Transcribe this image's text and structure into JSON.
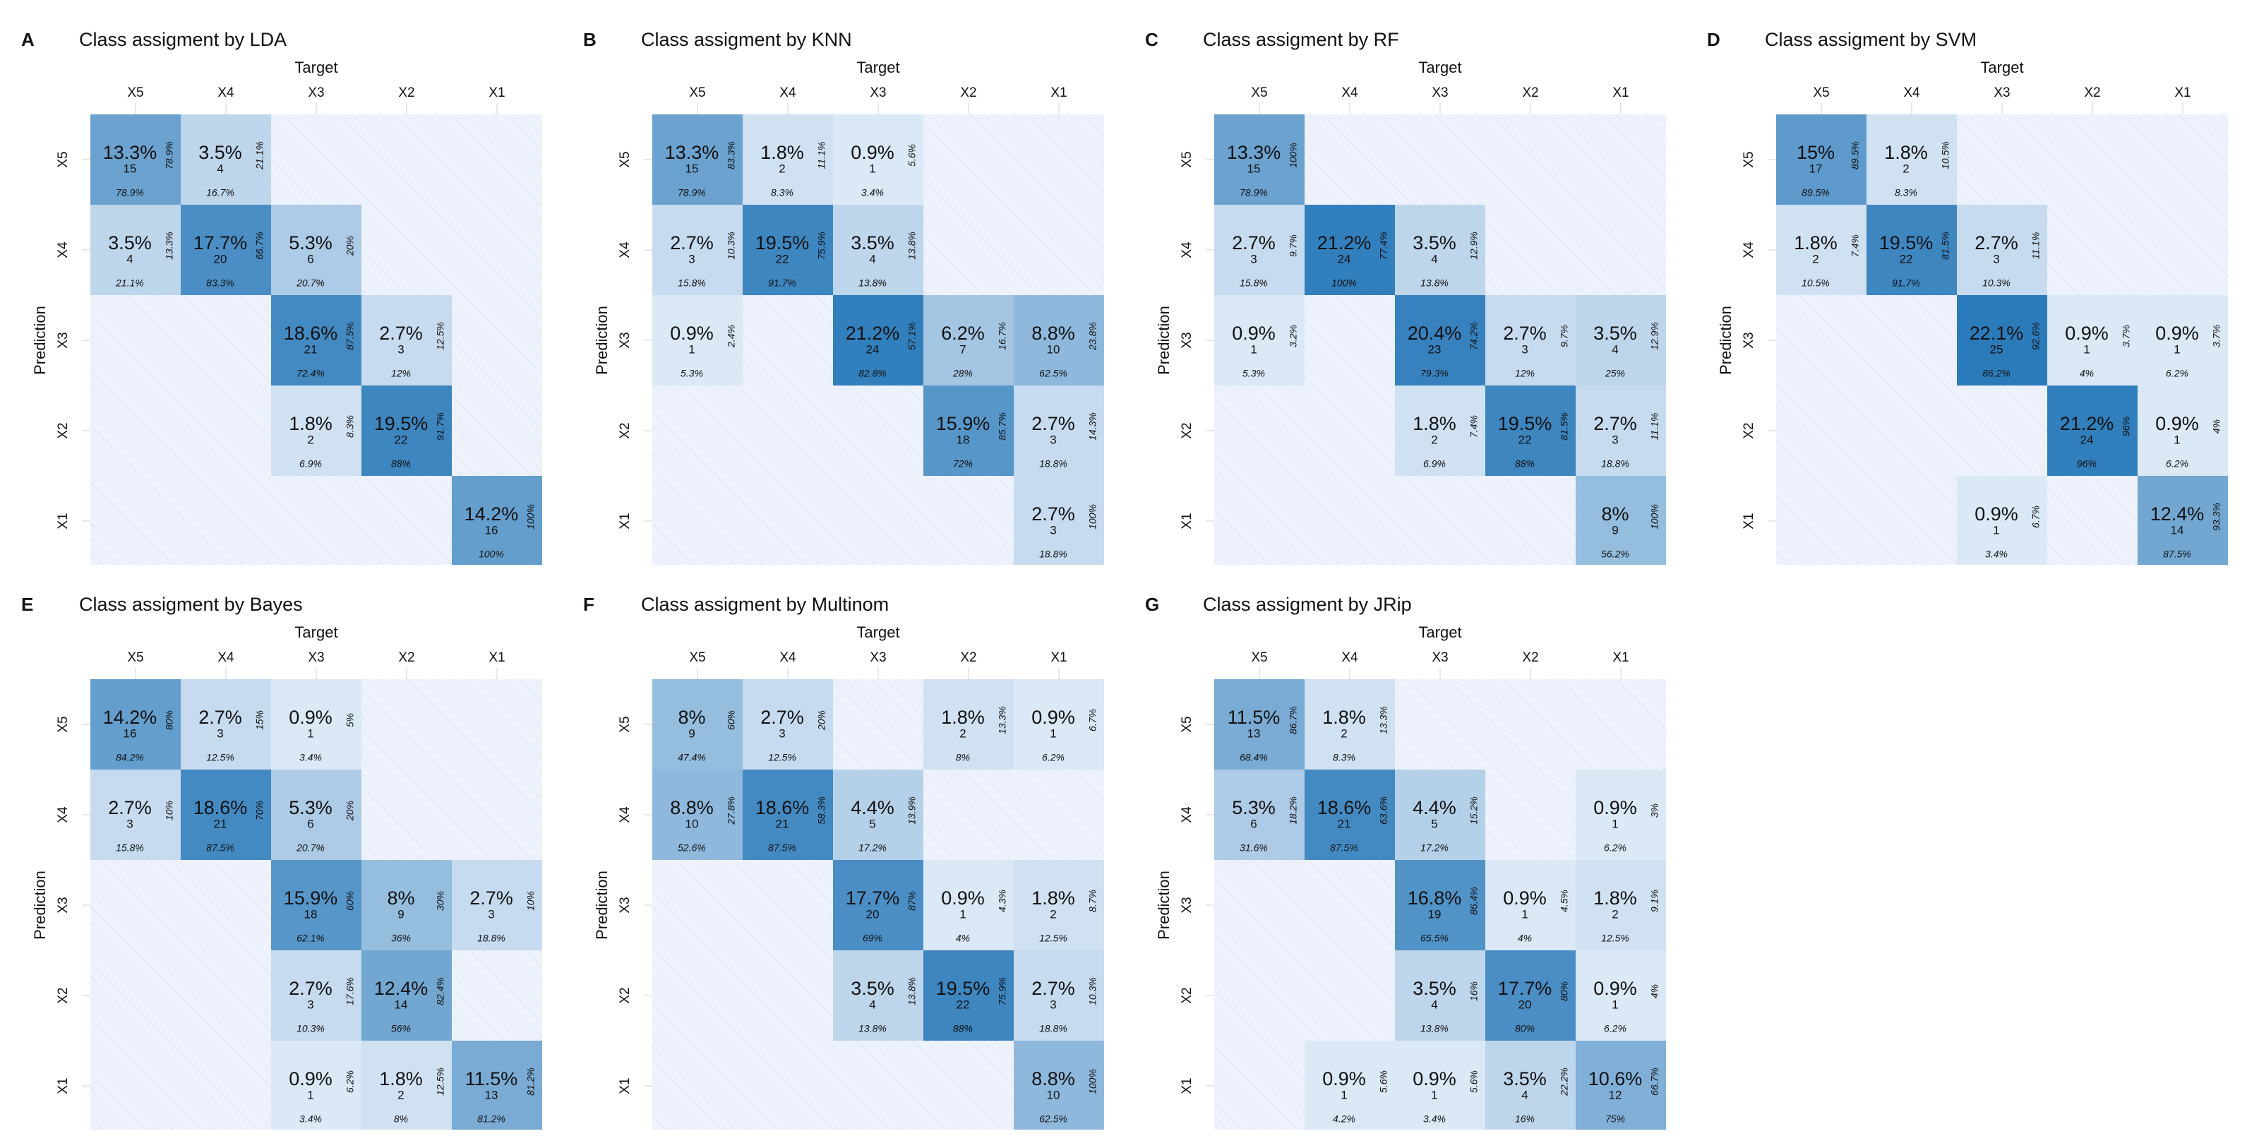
{
  "figure": {
    "shared_labels": {
      "target": "Target",
      "prediction": "Prediction"
    },
    "categories": [
      "X5",
      "X4",
      "X3",
      "X2",
      "X1"
    ]
  },
  "chart_data": [
    {
      "type": "heatmap",
      "letter": "A",
      "title": "Class assigment by LDA",
      "xlabel": "Target",
      "ylabel": "Prediction",
      "x_categories": [
        "X5",
        "X4",
        "X3",
        "X2",
        "X1"
      ],
      "y_categories": [
        "X5",
        "X4",
        "X3",
        "X2",
        "X1"
      ],
      "cells": [
        {
          "row": "X5",
          "col": "X5",
          "pct": "13.3%",
          "count": "15",
          "col_pct": "78.9%",
          "row_pct": "78.9%"
        },
        {
          "row": "X5",
          "col": "X4",
          "pct": "3.5%",
          "count": "4",
          "col_pct": "16.7%",
          "row_pct": "21.1%"
        },
        {
          "row": "X4",
          "col": "X5",
          "pct": "3.5%",
          "count": "4",
          "col_pct": "21.1%",
          "row_pct": "13.3%"
        },
        {
          "row": "X4",
          "col": "X4",
          "pct": "17.7%",
          "count": "20",
          "col_pct": "83.3%",
          "row_pct": "66.7%"
        },
        {
          "row": "X4",
          "col": "X3",
          "pct": "5.3%",
          "count": "6",
          "col_pct": "20.7%",
          "row_pct": "20%"
        },
        {
          "row": "X3",
          "col": "X3",
          "pct": "18.6%",
          "count": "21",
          "col_pct": "72.4%",
          "row_pct": "87.5%"
        },
        {
          "row": "X3",
          "col": "X2",
          "pct": "2.7%",
          "count": "3",
          "col_pct": "12%",
          "row_pct": "12.5%"
        },
        {
          "row": "X2",
          "col": "X3",
          "pct": "1.8%",
          "count": "2",
          "col_pct": "6.9%",
          "row_pct": "8.3%"
        },
        {
          "row": "X2",
          "col": "X2",
          "pct": "19.5%",
          "count": "22",
          "col_pct": "88%",
          "row_pct": "91.7%"
        },
        {
          "row": "X1",
          "col": "X1",
          "pct": "14.2%",
          "count": "16",
          "col_pct": "100%",
          "row_pct": "100%"
        }
      ]
    },
    {
      "type": "heatmap",
      "letter": "B",
      "title": "Class assigment by KNN",
      "xlabel": "Target",
      "ylabel": "Prediction",
      "x_categories": [
        "X5",
        "X4",
        "X3",
        "X2",
        "X1"
      ],
      "y_categories": [
        "X5",
        "X4",
        "X3",
        "X2",
        "X1"
      ],
      "cells": [
        {
          "row": "X5",
          "col": "X5",
          "pct": "13.3%",
          "count": "15",
          "col_pct": "78.9%",
          "row_pct": "83.3%"
        },
        {
          "row": "X5",
          "col": "X4",
          "pct": "1.8%",
          "count": "2",
          "col_pct": "8.3%",
          "row_pct": "11.1%"
        },
        {
          "row": "X5",
          "col": "X3",
          "pct": "0.9%",
          "count": "1",
          "col_pct": "3.4%",
          "row_pct": "5.6%"
        },
        {
          "row": "X4",
          "col": "X5",
          "pct": "2.7%",
          "count": "3",
          "col_pct": "15.8%",
          "row_pct": "10.3%"
        },
        {
          "row": "X4",
          "col": "X4",
          "pct": "19.5%",
          "count": "22",
          "col_pct": "91.7%",
          "row_pct": "75.9%"
        },
        {
          "row": "X4",
          "col": "X3",
          "pct": "3.5%",
          "count": "4",
          "col_pct": "13.8%",
          "row_pct": "13.8%"
        },
        {
          "row": "X3",
          "col": "X5",
          "pct": "0.9%",
          "count": "1",
          "col_pct": "5.3%",
          "row_pct": "2.4%"
        },
        {
          "row": "X3",
          "col": "X3",
          "pct": "21.2%",
          "count": "24",
          "col_pct": "82.8%",
          "row_pct": "57.1%"
        },
        {
          "row": "X3",
          "col": "X2",
          "pct": "6.2%",
          "count": "7",
          "col_pct": "28%",
          "row_pct": "16.7%"
        },
        {
          "row": "X3",
          "col": "X1",
          "pct": "8.8%",
          "count": "10",
          "col_pct": "62.5%",
          "row_pct": "23.8%"
        },
        {
          "row": "X2",
          "col": "X2",
          "pct": "15.9%",
          "count": "18",
          "col_pct": "72%",
          "row_pct": "85.7%"
        },
        {
          "row": "X2",
          "col": "X1",
          "pct": "2.7%",
          "count": "3",
          "col_pct": "18.8%",
          "row_pct": "14.3%"
        },
        {
          "row": "X1",
          "col": "X1",
          "pct": "2.7%",
          "count": "3",
          "col_pct": "18.8%",
          "row_pct": "100%"
        }
      ]
    },
    {
      "type": "heatmap",
      "letter": "C",
      "title": "Class assigment by RF",
      "xlabel": "Target",
      "ylabel": "Prediction",
      "x_categories": [
        "X5",
        "X4",
        "X3",
        "X2",
        "X1"
      ],
      "y_categories": [
        "X5",
        "X4",
        "X3",
        "X2",
        "X1"
      ],
      "cells": [
        {
          "row": "X5",
          "col": "X5",
          "pct": "13.3%",
          "count": "15",
          "col_pct": "78.9%",
          "row_pct": "100%"
        },
        {
          "row": "X4",
          "col": "X5",
          "pct": "2.7%",
          "count": "3",
          "col_pct": "15.8%",
          "row_pct": "9.7%"
        },
        {
          "row": "X4",
          "col": "X4",
          "pct": "21.2%",
          "count": "24",
          "col_pct": "100%",
          "row_pct": "77.4%"
        },
        {
          "row": "X4",
          "col": "X3",
          "pct": "3.5%",
          "count": "4",
          "col_pct": "13.8%",
          "row_pct": "12.9%"
        },
        {
          "row": "X3",
          "col": "X5",
          "pct": "0.9%",
          "count": "1",
          "col_pct": "5.3%",
          "row_pct": "3.2%"
        },
        {
          "row": "X3",
          "col": "X3",
          "pct": "20.4%",
          "count": "23",
          "col_pct": "79.3%",
          "row_pct": "74.2%"
        },
        {
          "row": "X3",
          "col": "X2",
          "pct": "2.7%",
          "count": "3",
          "col_pct": "12%",
          "row_pct": "9.7%"
        },
        {
          "row": "X3",
          "col": "X1",
          "pct": "3.5%",
          "count": "4",
          "col_pct": "25%",
          "row_pct": "12.9%"
        },
        {
          "row": "X2",
          "col": "X3",
          "pct": "1.8%",
          "count": "2",
          "col_pct": "6.9%",
          "row_pct": "7.4%"
        },
        {
          "row": "X2",
          "col": "X2",
          "pct": "19.5%",
          "count": "22",
          "col_pct": "88%",
          "row_pct": "81.5%"
        },
        {
          "row": "X2",
          "col": "X1",
          "pct": "2.7%",
          "count": "3",
          "col_pct": "18.8%",
          "row_pct": "11.1%"
        },
        {
          "row": "X1",
          "col": "X1",
          "pct": "8%",
          "count": "9",
          "col_pct": "56.2%",
          "row_pct": "100%"
        }
      ]
    },
    {
      "type": "heatmap",
      "letter": "D",
      "title": "Class assigment by SVM",
      "xlabel": "Target",
      "ylabel": "Prediction",
      "x_categories": [
        "X5",
        "X4",
        "X3",
        "X2",
        "X1"
      ],
      "y_categories": [
        "X5",
        "X4",
        "X3",
        "X2",
        "X1"
      ],
      "cells": [
        {
          "row": "X5",
          "col": "X5",
          "pct": "15%",
          "count": "17",
          "col_pct": "89.5%",
          "row_pct": "89.5%"
        },
        {
          "row": "X5",
          "col": "X4",
          "pct": "1.8%",
          "count": "2",
          "col_pct": "8.3%",
          "row_pct": "10.5%"
        },
        {
          "row": "X4",
          "col": "X5",
          "pct": "1.8%",
          "count": "2",
          "col_pct": "10.5%",
          "row_pct": "7.4%"
        },
        {
          "row": "X4",
          "col": "X4",
          "pct": "19.5%",
          "count": "22",
          "col_pct": "91.7%",
          "row_pct": "81.5%"
        },
        {
          "row": "X4",
          "col": "X3",
          "pct": "2.7%",
          "count": "3",
          "col_pct": "10.3%",
          "row_pct": "11.1%"
        },
        {
          "row": "X3",
          "col": "X3",
          "pct": "22.1%",
          "count": "25",
          "col_pct": "86.2%",
          "row_pct": "92.6%"
        },
        {
          "row": "X3",
          "col": "X2",
          "pct": "0.9%",
          "count": "1",
          "col_pct": "4%",
          "row_pct": "3.7%"
        },
        {
          "row": "X3",
          "col": "X1",
          "pct": "0.9%",
          "count": "1",
          "col_pct": "6.2%",
          "row_pct": "3.7%"
        },
        {
          "row": "X2",
          "col": "X2",
          "pct": "21.2%",
          "count": "24",
          "col_pct": "96%",
          "row_pct": "96%"
        },
        {
          "row": "X2",
          "col": "X1",
          "pct": "0.9%",
          "count": "1",
          "col_pct": "6.2%",
          "row_pct": "4%"
        },
        {
          "row": "X1",
          "col": "X3",
          "pct": "0.9%",
          "count": "1",
          "col_pct": "3.4%",
          "row_pct": "6.7%"
        },
        {
          "row": "X1",
          "col": "X1",
          "pct": "12.4%",
          "count": "14",
          "col_pct": "87.5%",
          "row_pct": "93.3%"
        }
      ]
    },
    {
      "type": "heatmap",
      "letter": "E",
      "title": "Class assigment by Bayes",
      "xlabel": "Target",
      "ylabel": "Prediction",
      "x_categories": [
        "X5",
        "X4",
        "X3",
        "X2",
        "X1"
      ],
      "y_categories": [
        "X5",
        "X4",
        "X3",
        "X2",
        "X1"
      ],
      "cells": [
        {
          "row": "X5",
          "col": "X5",
          "pct": "14.2%",
          "count": "16",
          "col_pct": "84.2%",
          "row_pct": "80%"
        },
        {
          "row": "X5",
          "col": "X4",
          "pct": "2.7%",
          "count": "3",
          "col_pct": "12.5%",
          "row_pct": "15%"
        },
        {
          "row": "X5",
          "col": "X3",
          "pct": "0.9%",
          "count": "1",
          "col_pct": "3.4%",
          "row_pct": "5%"
        },
        {
          "row": "X4",
          "col": "X5",
          "pct": "2.7%",
          "count": "3",
          "col_pct": "15.8%",
          "row_pct": "10%"
        },
        {
          "row": "X4",
          "col": "X4",
          "pct": "18.6%",
          "count": "21",
          "col_pct": "87.5%",
          "row_pct": "70%"
        },
        {
          "row": "X4",
          "col": "X3",
          "pct": "5.3%",
          "count": "6",
          "col_pct": "20.7%",
          "row_pct": "20%"
        },
        {
          "row": "X3",
          "col": "X3",
          "pct": "15.9%",
          "count": "18",
          "col_pct": "62.1%",
          "row_pct": "60%"
        },
        {
          "row": "X3",
          "col": "X2",
          "pct": "8%",
          "count": "9",
          "col_pct": "36%",
          "row_pct": "30%"
        },
        {
          "row": "X3",
          "col": "X1",
          "pct": "2.7%",
          "count": "3",
          "col_pct": "18.8%",
          "row_pct": "10%"
        },
        {
          "row": "X2",
          "col": "X3",
          "pct": "2.7%",
          "count": "3",
          "col_pct": "10.3%",
          "row_pct": "17.6%"
        },
        {
          "row": "X2",
          "col": "X2",
          "pct": "12.4%",
          "count": "14",
          "col_pct": "56%",
          "row_pct": "82.4%"
        },
        {
          "row": "X1",
          "col": "X3",
          "pct": "0.9%",
          "count": "1",
          "col_pct": "3.4%",
          "row_pct": "6.2%"
        },
        {
          "row": "X1",
          "col": "X2",
          "pct": "1.8%",
          "count": "2",
          "col_pct": "8%",
          "row_pct": "12.5%"
        },
        {
          "row": "X1",
          "col": "X1",
          "pct": "11.5%",
          "count": "13",
          "col_pct": "81.2%",
          "row_pct": "81.2%"
        }
      ]
    },
    {
      "type": "heatmap",
      "letter": "F",
      "title": "Class assigment by Multinom",
      "xlabel": "Target",
      "ylabel": "Prediction",
      "x_categories": [
        "X5",
        "X4",
        "X3",
        "X2",
        "X1"
      ],
      "y_categories": [
        "X5",
        "X4",
        "X3",
        "X2",
        "X1"
      ],
      "cells": [
        {
          "row": "X5",
          "col": "X5",
          "pct": "8%",
          "count": "9",
          "col_pct": "47.4%",
          "row_pct": "60%"
        },
        {
          "row": "X5",
          "col": "X4",
          "pct": "2.7%",
          "count": "3",
          "col_pct": "12.5%",
          "row_pct": "20%"
        },
        {
          "row": "X5",
          "col": "X2",
          "pct": "1.8%",
          "count": "2",
          "col_pct": "8%",
          "row_pct": "13.3%"
        },
        {
          "row": "X5",
          "col": "X1",
          "pct": "0.9%",
          "count": "1",
          "col_pct": "6.2%",
          "row_pct": "6.7%"
        },
        {
          "row": "X4",
          "col": "X5",
          "pct": "8.8%",
          "count": "10",
          "col_pct": "52.6%",
          "row_pct": "27.8%"
        },
        {
          "row": "X4",
          "col": "X4",
          "pct": "18.6%",
          "count": "21",
          "col_pct": "87.5%",
          "row_pct": "58.3%"
        },
        {
          "row": "X4",
          "col": "X3",
          "pct": "4.4%",
          "count": "5",
          "col_pct": "17.2%",
          "row_pct": "13.9%"
        },
        {
          "row": "X3",
          "col": "X3",
          "pct": "17.7%",
          "count": "20",
          "col_pct": "69%",
          "row_pct": "87%"
        },
        {
          "row": "X3",
          "col": "X2",
          "pct": "0.9%",
          "count": "1",
          "col_pct": "4%",
          "row_pct": "4.3%"
        },
        {
          "row": "X3",
          "col": "X1",
          "pct": "1.8%",
          "count": "2",
          "col_pct": "12.5%",
          "row_pct": "8.7%"
        },
        {
          "row": "X2",
          "col": "X3",
          "pct": "3.5%",
          "count": "4",
          "col_pct": "13.8%",
          "row_pct": "13.8%"
        },
        {
          "row": "X2",
          "col": "X2",
          "pct": "19.5%",
          "count": "22",
          "col_pct": "88%",
          "row_pct": "75.9%"
        },
        {
          "row": "X2",
          "col": "X1",
          "pct": "2.7%",
          "count": "3",
          "col_pct": "18.8%",
          "row_pct": "10.3%"
        },
        {
          "row": "X1",
          "col": "X1",
          "pct": "8.8%",
          "count": "10",
          "col_pct": "62.5%",
          "row_pct": "100%"
        }
      ]
    },
    {
      "type": "heatmap",
      "letter": "G",
      "title": "Class assigment by JRip",
      "xlabel": "Target",
      "ylabel": "Prediction",
      "x_categories": [
        "X5",
        "X4",
        "X3",
        "X2",
        "X1"
      ],
      "y_categories": [
        "X5",
        "X4",
        "X3",
        "X2",
        "X1"
      ],
      "cells": [
        {
          "row": "X5",
          "col": "X5",
          "pct": "11.5%",
          "count": "13",
          "col_pct": "68.4%",
          "row_pct": "86.7%"
        },
        {
          "row": "X5",
          "col": "X4",
          "pct": "1.8%",
          "count": "2",
          "col_pct": "8.3%",
          "row_pct": "13.3%"
        },
        {
          "row": "X4",
          "col": "X5",
          "pct": "5.3%",
          "count": "6",
          "col_pct": "31.6%",
          "row_pct": "18.2%"
        },
        {
          "row": "X4",
          "col": "X4",
          "pct": "18.6%",
          "count": "21",
          "col_pct": "87.5%",
          "row_pct": "63.6%"
        },
        {
          "row": "X4",
          "col": "X3",
          "pct": "4.4%",
          "count": "5",
          "col_pct": "17.2%",
          "row_pct": "15.2%"
        },
        {
          "row": "X4",
          "col": "X1",
          "pct": "0.9%",
          "count": "1",
          "col_pct": "6.2%",
          "row_pct": "3%"
        },
        {
          "row": "X3",
          "col": "X3",
          "pct": "16.8%",
          "count": "19",
          "col_pct": "65.5%",
          "row_pct": "86.4%"
        },
        {
          "row": "X3",
          "col": "X2",
          "pct": "0.9%",
          "count": "1",
          "col_pct": "4%",
          "row_pct": "4.5%"
        },
        {
          "row": "X3",
          "col": "X1",
          "pct": "1.8%",
          "count": "2",
          "col_pct": "12.5%",
          "row_pct": "9.1%"
        },
        {
          "row": "X2",
          "col": "X3",
          "pct": "3.5%",
          "count": "4",
          "col_pct": "13.8%",
          "row_pct": "16%"
        },
        {
          "row": "X2",
          "col": "X2",
          "pct": "17.7%",
          "count": "20",
          "col_pct": "80%",
          "row_pct": "80%"
        },
        {
          "row": "X2",
          "col": "X1",
          "pct": "0.9%",
          "count": "1",
          "col_pct": "6.2%",
          "row_pct": "4%"
        },
        {
          "row": "X1",
          "col": "X4",
          "pct": "0.9%",
          "count": "1",
          "col_pct": "4.2%",
          "row_pct": "5.6%"
        },
        {
          "row": "X1",
          "col": "X3",
          "pct": "0.9%",
          "count": "1",
          "col_pct": "3.4%",
          "row_pct": "5.6%"
        },
        {
          "row": "X1",
          "col": "X2",
          "pct": "3.5%",
          "count": "4",
          "col_pct": "16%",
          "row_pct": "22.2%"
        },
        {
          "row": "X1",
          "col": "X1",
          "pct": "10.6%",
          "count": "12",
          "col_pct": "75%",
          "row_pct": "66.7%"
        }
      ]
    }
  ],
  "colors": {
    "background_cell": "#eef2fc",
    "hatch": "#c9d3ea",
    "low": "#eaf1fb",
    "high": "#2b7bba",
    "grid": "#d0d0d0",
    "text": "#111111"
  }
}
